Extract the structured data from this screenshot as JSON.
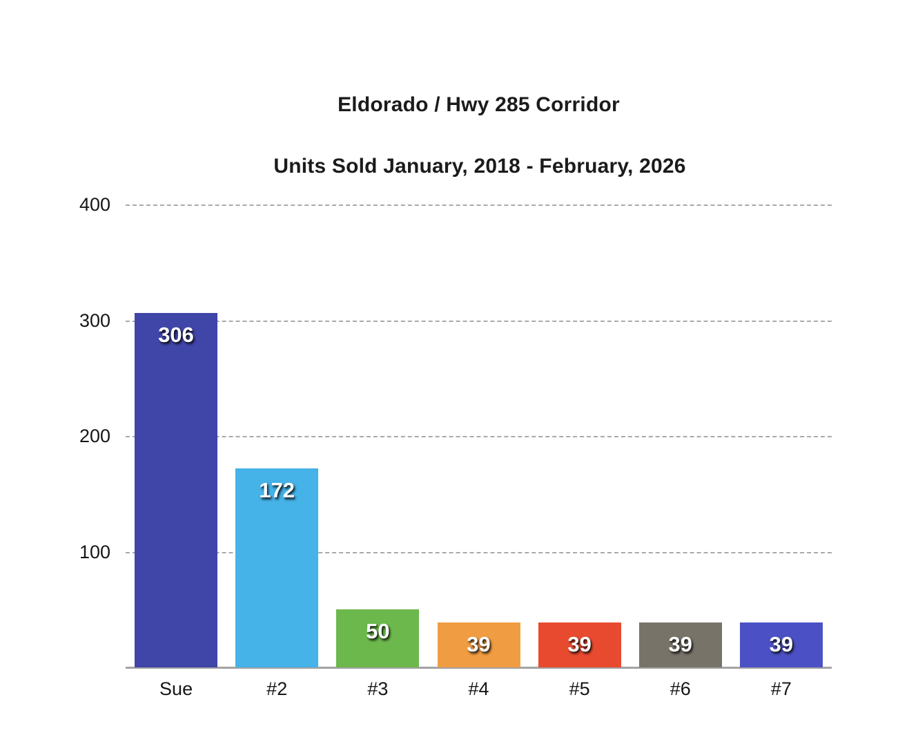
{
  "page": {
    "background_color": "#ffffff"
  },
  "chart_data": {
    "type": "bar",
    "title": "Eldorado / Hwy 285 Corridor",
    "subtitle": "Units Sold January, 2018 - February, 2026",
    "categories": [
      "Sue",
      "#2",
      "#3",
      "#4",
      "#5",
      "#6",
      "#7"
    ],
    "values": [
      306,
      172,
      50,
      39,
      39,
      39,
      39
    ],
    "bar_colors": [
      "#4045a8",
      "#45b2e8",
      "#6cb84c",
      "#f09c42",
      "#e84a30",
      "#787369",
      "#4b51c4"
    ],
    "value_label_color": "#ffffff",
    "xlabel": "",
    "ylabel": "",
    "ylim": [
      0,
      400
    ],
    "yticks": [
      100,
      200,
      300,
      400
    ],
    "grid": "horizontal dashed, no baseline gridline",
    "legend": "none",
    "grid_color": "#a9a9a9",
    "axis_color": "#a3a3a3",
    "text_color": "#161616"
  }
}
